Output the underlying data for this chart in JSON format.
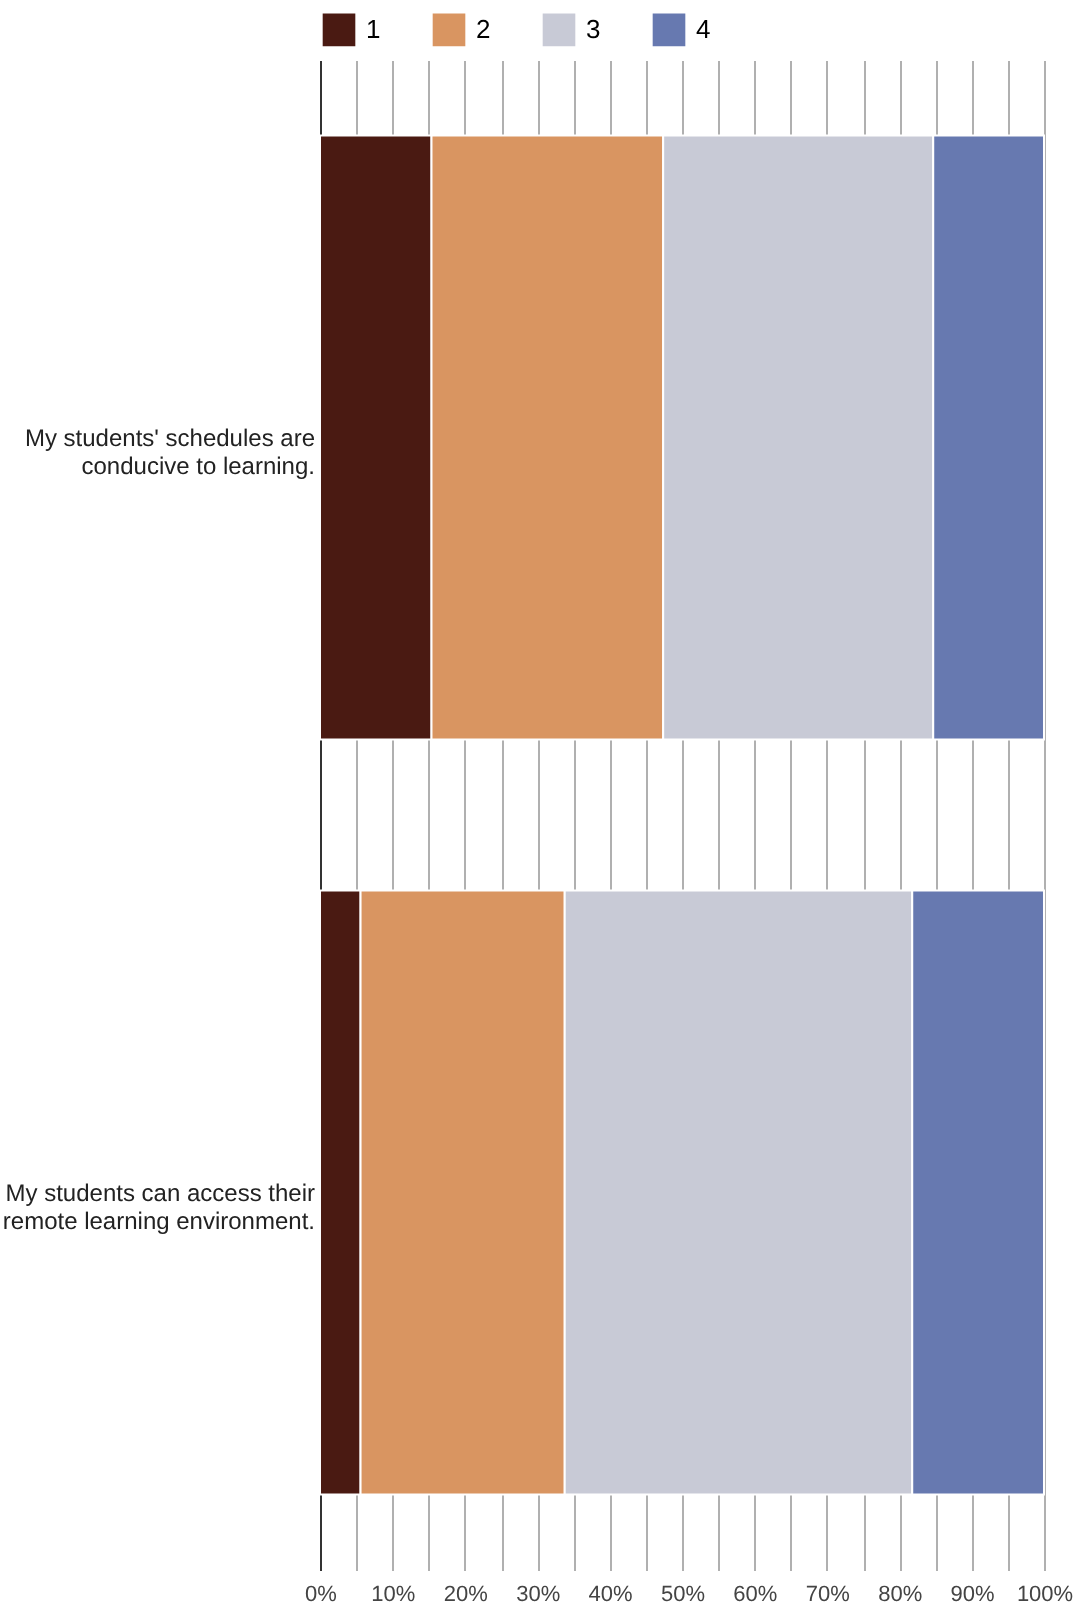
{
  "chart_data": {
    "type": "bar",
    "orientation": "horizontal",
    "stacked": true,
    "categories": [
      "My students' schedules are conducive to learning.",
      "My students can access their remote learning environment."
    ],
    "series": [
      {
        "name": "1",
        "color": "#4a1a12",
        "values": [
          15.4,
          5.6
        ]
      },
      {
        "name": "2",
        "color": "#d99561",
        "values": [
          32.0,
          28.2
        ]
      },
      {
        "name": "3",
        "color": "#c8cad6",
        "values": [
          37.3,
          48.0
        ]
      },
      {
        "name": "4",
        "color": "#6779b0",
        "values": [
          15.3,
          18.2
        ]
      }
    ],
    "xlim": [
      0,
      100
    ],
    "xticks": [
      {
        "value": 0,
        "label": "0%"
      },
      {
        "value": 5,
        "label": null
      },
      {
        "value": 10,
        "label": "10%"
      },
      {
        "value": 15,
        "label": null
      },
      {
        "value": 20,
        "label": "20%"
      },
      {
        "value": 25,
        "label": null
      },
      {
        "value": 30,
        "label": "30%"
      },
      {
        "value": 35,
        "label": null
      },
      {
        "value": 40,
        "label": "40%"
      },
      {
        "value": 45,
        "label": null
      },
      {
        "value": 50,
        "label": "50%"
      },
      {
        "value": 55,
        "label": null
      },
      {
        "value": 60,
        "label": "60%"
      },
      {
        "value": 65,
        "label": null
      },
      {
        "value": 70,
        "label": "70%"
      },
      {
        "value": 75,
        "label": null
      },
      {
        "value": 80,
        "label": "80%"
      },
      {
        "value": 85,
        "label": null
      },
      {
        "value": 90,
        "label": "90%"
      },
      {
        "value": 95,
        "label": null
      },
      {
        "value": 100,
        "label": "100%"
      }
    ],
    "grid": true,
    "legend": "top left"
  }
}
